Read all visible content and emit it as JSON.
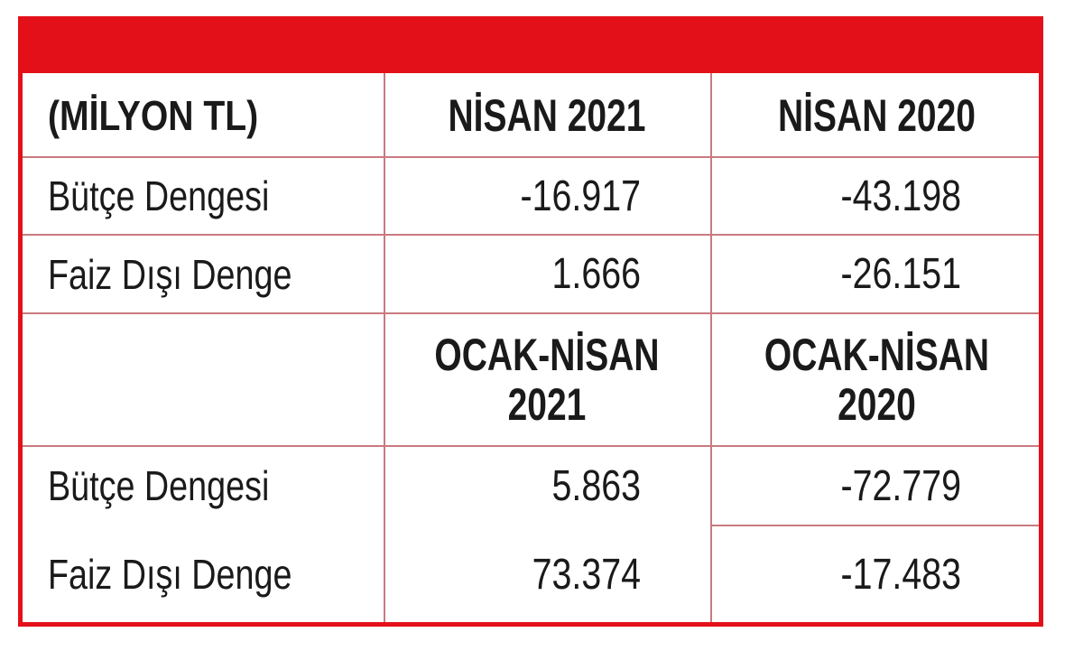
{
  "table": {
    "unit_header": "(MİLYON TL)",
    "period1": {
      "col1": "NİSAN 2021",
      "col2": "NİSAN 2020",
      "rows": [
        {
          "label": "Bütçe Dengesi",
          "v1": "-16.917",
          "v2": "-43.198"
        },
        {
          "label": "Faiz Dışı Denge",
          "v1": "1.666",
          "v2": "-26.151"
        }
      ]
    },
    "period2": {
      "col1": "OCAK-NİSAN 2021",
      "col2": "OCAK-NİSAN 2020",
      "rows": [
        {
          "label": "Bütçe Dengesi",
          "v1": "5.863",
          "v2": "-72.779"
        },
        {
          "label": "Faiz Dışı Denge",
          "v1": "73.374",
          "v2": "-17.483"
        }
      ]
    }
  },
  "colors": {
    "accent_red": "#e3101a",
    "grid_line": "#c97a80",
    "text": "#1a1a1a"
  }
}
